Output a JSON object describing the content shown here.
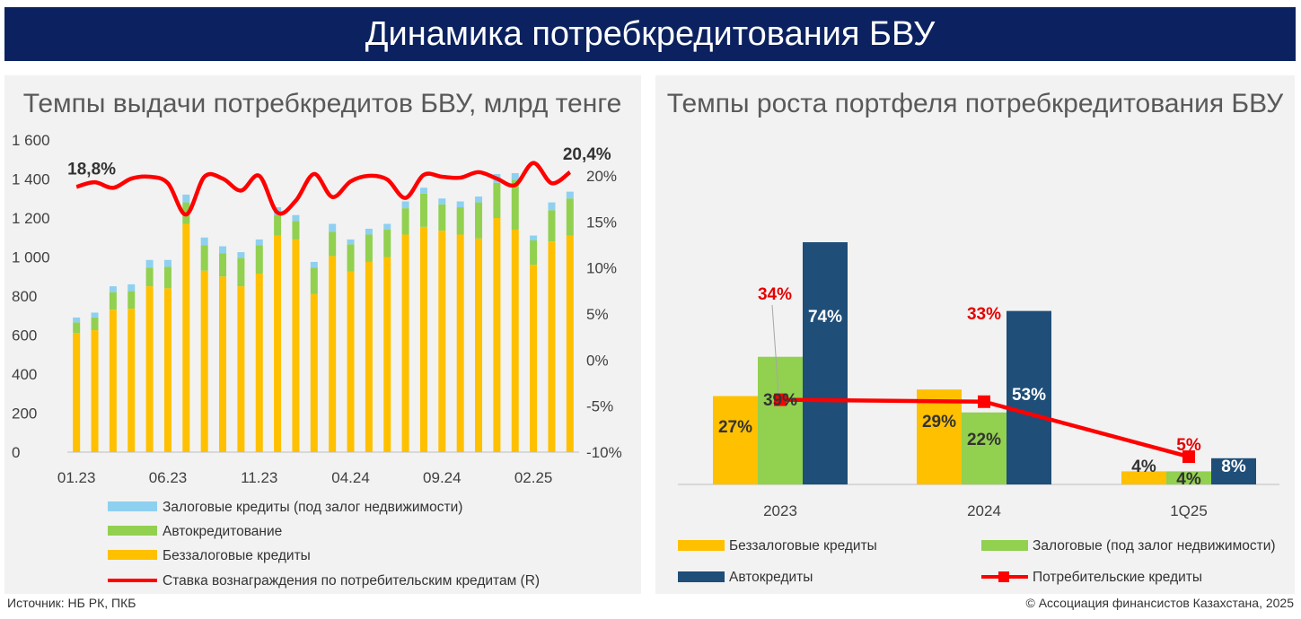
{
  "header": {
    "title": "Динамика потребкредитования БВУ"
  },
  "footer": {
    "source": "Источник: НБ РК, ПКБ",
    "copyright": "© Ассоциация финансистов Казахстана, 2025"
  },
  "colors": {
    "banner": "#0b2160",
    "unsecured": "#ffc000",
    "auto": "#92d050",
    "mortgage": "#8ed0f0",
    "rate": "#ff0000",
    "autocredit": "#1f4e79",
    "label_red": "#e60000"
  },
  "chart_data": [
    {
      "type": "bar",
      "stacked": true,
      "title": "Темпы выдачи потребкредитов БВУ, млрд тенге",
      "ylim": [
        0,
        1600
      ],
      "yticks": [
        "0",
        "200",
        "400",
        "600",
        "800",
        "1 000",
        "1 200",
        "1 400",
        "1 600"
      ],
      "y2lim": [
        -10,
        20
      ],
      "y2ticks": [
        "-10%",
        "-5%",
        "0%",
        "5%",
        "10%",
        "15%",
        "20%"
      ],
      "xticks": [
        "01.23",
        "06.23",
        "11.23",
        "04.24",
        "09.24",
        "02.25"
      ],
      "xtick_index": [
        0,
        5,
        10,
        15,
        20,
        25
      ],
      "legend_position": "bottom",
      "series": [
        {
          "name": "Беззалоговые кредиты",
          "values": [
            610,
            625,
            730,
            735,
            850,
            840,
            1170,
            930,
            900,
            850,
            915,
            1110,
            1090,
            810,
            1005,
            925,
            975,
            1000,
            1115,
            1155,
            1135,
            1115,
            1095,
            1200,
            1140,
            960,
            1080,
            1110
          ]
        },
        {
          "name": "Автокредитование",
          "values": [
            55,
            65,
            90,
            90,
            95,
            110,
            110,
            130,
            120,
            145,
            145,
            105,
            95,
            135,
            125,
            140,
            140,
            140,
            135,
            170,
            135,
            140,
            185,
            180,
            255,
            125,
            160,
            190
          ]
        },
        {
          "name": "Залоговые кредиты (под залог недвижимости)",
          "values": [
            25,
            25,
            30,
            35,
            40,
            35,
            40,
            40,
            35,
            30,
            30,
            40,
            30,
            30,
            40,
            25,
            30,
            30,
            35,
            30,
            30,
            30,
            30,
            45,
            35,
            25,
            40,
            35
          ]
        },
        {
          "name": "Ставка вознаграждения по  потребительским кредитам (R)",
          "type": "line",
          "axis": "right",
          "values": [
            18.8,
            19.3,
            18.7,
            19.7,
            19.9,
            19.2,
            15.8,
            19.9,
            19.7,
            18.4,
            20.0,
            16.0,
            17.3,
            20.2,
            17.7,
            19.4,
            20.0,
            19.6,
            17.6,
            20.1,
            19.9,
            19.8,
            20.4,
            19.7,
            19.0,
            21.4,
            19.2,
            20.4
          ]
        }
      ],
      "annotations": [
        {
          "index": 0,
          "text": "18,8%"
        },
        {
          "index": 27,
          "text": "20,4%"
        }
      ]
    },
    {
      "type": "bar",
      "title": "Темпы роста портфеля потребкредитования БВУ",
      "categories": [
        "2023",
        "2024",
        "1Q25"
      ],
      "legend_position": "bottom",
      "series": [
        {
          "name": "Беззалоговые кредиты",
          "values": [
            27,
            29,
            4
          ],
          "labels": [
            "27%",
            "29%",
            "4%"
          ]
        },
        {
          "name": "Залоговые  (под залог недвижимости)",
          "values": [
            39,
            22,
            4
          ],
          "labels": [
            "39%",
            "22%",
            "4%"
          ]
        },
        {
          "name": "Автокредиты",
          "values": [
            74,
            53,
            8
          ],
          "labels": [
            "74%",
            "53%",
            "8%"
          ]
        },
        {
          "name": "Потребительские кредиты",
          "type": "line",
          "values": [
            34,
            33,
            5
          ],
          "labels": [
            "34%",
            "33%",
            "5%"
          ]
        }
      ]
    }
  ]
}
